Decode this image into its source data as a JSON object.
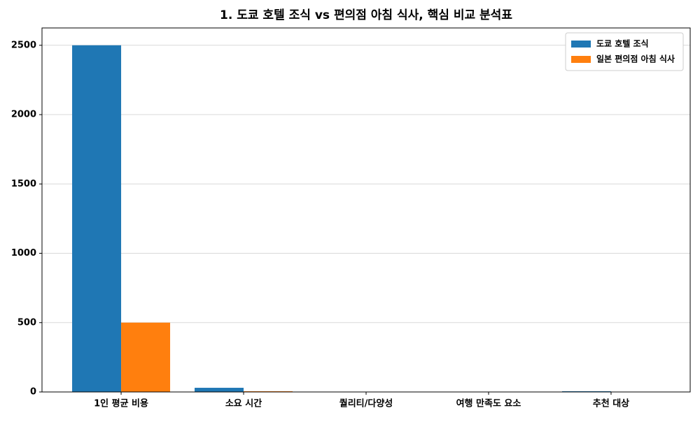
{
  "chart_data": {
    "type": "bar",
    "title": "1. 도쿄 호텔 조식 vs 편의점 아침 식사, 핵심 비교 분석표",
    "categories": [
      "1인 평균 비용",
      "소요 시간",
      "퀄리티/다양성",
      "여행 만족도 요소",
      "추천 대상"
    ],
    "series": [
      {
        "name": "도쿄 호텔 조식",
        "color": "#1f77b4",
        "values": [
          2500,
          30,
          0,
          0,
          5
        ]
      },
      {
        "name": "일본 편의점 아침 식사",
        "color": "#ff7f0e",
        "values": [
          500,
          5,
          0,
          0,
          0
        ]
      }
    ],
    "ylim": [
      0,
      2625
    ],
    "yticks": [
      0,
      500,
      1000,
      1500,
      2000,
      2500
    ],
    "grid": true,
    "legend": "upper right"
  }
}
